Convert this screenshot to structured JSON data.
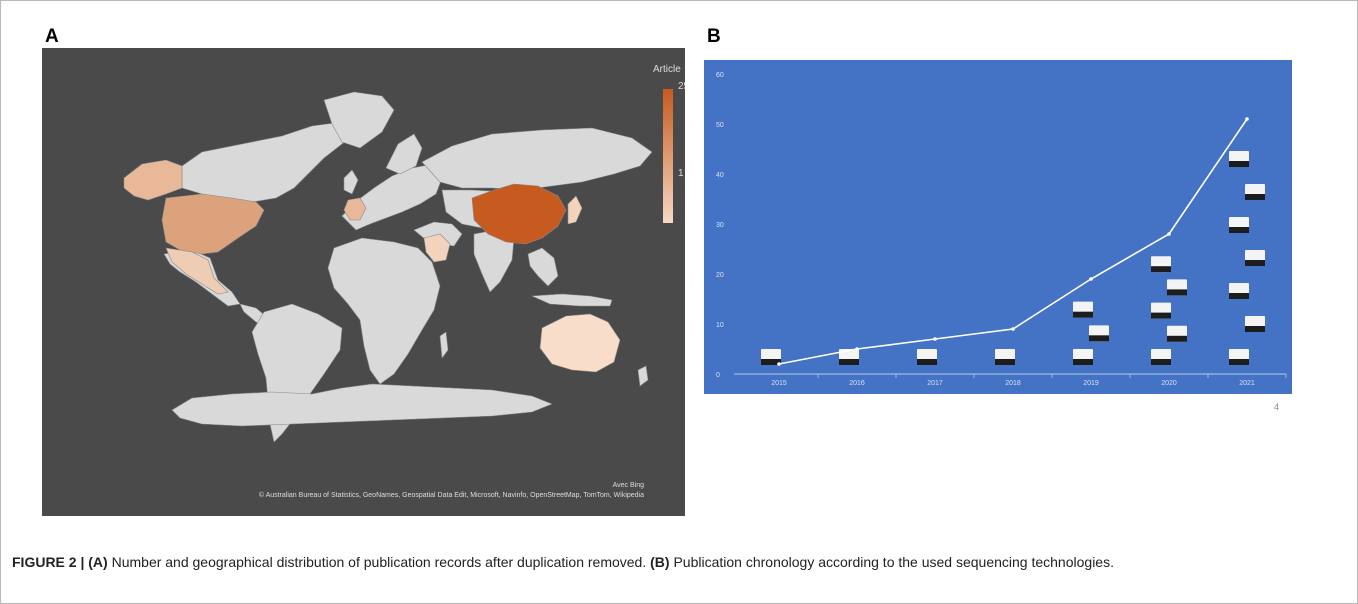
{
  "panels": {
    "a_label": "A",
    "b_label": "B"
  },
  "map": {
    "legend_title": "Article",
    "legend_max": "25",
    "legend_min": "1",
    "legend_color_low": "#f6d9c4",
    "legend_color_high": "#c75a1f",
    "credit_line1": "Avec Bing",
    "credit_line2": "© Australian Bureau of Statistics, GeoNames, Geospatial Data Edit, Microsoft, Navinfo, OpenStreetMap, TomTom, Wikipedia",
    "colors": {
      "background": "#4a4a4a",
      "land": "#d9d9d9",
      "china": "#c75a1f",
      "usa": "#dba27b",
      "alaska": "#e8b898",
      "mexico": "#efcdb4",
      "australia": "#f7ddca",
      "france": "#e8b898",
      "saudi": "#f3d3bc",
      "japan": "#f3d3bc"
    }
  },
  "chart_data": {
    "type": "line",
    "x": [
      "2015",
      "2016",
      "2017",
      "2018",
      "2019",
      "2020",
      "2021"
    ],
    "y": [
      2,
      5,
      7,
      9,
      19,
      28,
      51
    ],
    "ylim": [
      0,
      60
    ],
    "yticks": [
      "0",
      "10",
      "20",
      "30",
      "40",
      "50",
      "60"
    ],
    "xlabel": "",
    "ylabel": "",
    "title": "",
    "grid": false,
    "colors": {
      "background": "#4472c4",
      "line": "#ffffff",
      "axis_text": "#d7e1f3"
    }
  },
  "page_number": "4",
  "caption": {
    "label": "FIGURE 2 | ",
    "a_ref": "(A)",
    "a_text": " Number and geographical distribution of publication records after duplication removed. ",
    "b_ref": "(B)",
    "b_text": " Publication chronology according to the used sequencing technologies."
  }
}
